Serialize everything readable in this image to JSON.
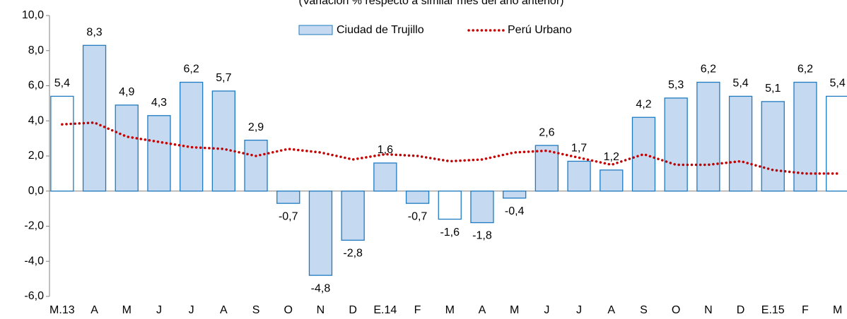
{
  "chart_data": {
    "type": "bar-line",
    "subtitle": "(Variación % respecto a similar mes del año anterior)",
    "categories": [
      "M.13",
      "A",
      "M",
      "J",
      "J",
      "A",
      "S",
      "O",
      "N",
      "D",
      "E.14",
      "F",
      "M",
      "A",
      "M",
      "J",
      "J",
      "A",
      "S",
      "O",
      "N",
      "D",
      "E.15",
      "F",
      "M"
    ],
    "series": [
      {
        "name": "Ciudad de Trujillo",
        "type": "bar",
        "color": "#c5d9f1",
        "edge_color": "#1f7bc1",
        "point_colors": [
          "#ffffff",
          "#c5d9f1",
          "#c5d9f1",
          "#c5d9f1",
          "#c5d9f1",
          "#c5d9f1",
          "#c5d9f1",
          "#c5d9f1",
          "#c5d9f1",
          "#c5d9f1",
          "#c5d9f1",
          "#c5d9f1",
          "#ffffff",
          "#c5d9f1",
          "#c5d9f1",
          "#c5d9f1",
          "#c5d9f1",
          "#c5d9f1",
          "#c5d9f1",
          "#c5d9f1",
          "#c5d9f1",
          "#c5d9f1",
          "#c5d9f1",
          "#c5d9f1",
          "#ffffff"
        ],
        "values": [
          5.4,
          8.3,
          4.9,
          4.3,
          6.2,
          5.7,
          2.9,
          -0.7,
          -4.8,
          -2.8,
          1.6,
          -0.7,
          -1.6,
          -1.8,
          -0.4,
          2.6,
          1.7,
          1.2,
          4.2,
          5.3,
          6.2,
          5.4,
          5.1,
          6.2,
          5.4
        ],
        "value_labels": [
          "5,4",
          "8,3",
          "4,9",
          "4,3",
          "6,2",
          "5,7",
          "2,9",
          "-0,7",
          "-4,8",
          "-2,8",
          "1,6",
          "-0,7",
          "-1,6",
          "-1,8",
          "-0,4",
          "2,6",
          "1,7",
          "1,2",
          "4,2",
          "5,3",
          "6,2",
          "5,4",
          "5,1",
          "6,2",
          "5,4"
        ]
      },
      {
        "name": "Perú Urbano",
        "type": "line",
        "color": "#c00000",
        "values": [
          3.8,
          3.9,
          3.1,
          2.8,
          2.5,
          2.4,
          2.0,
          2.4,
          2.2,
          1.8,
          2.1,
          2.0,
          1.7,
          1.8,
          2.2,
          2.3,
          1.9,
          1.5,
          2.1,
          1.5,
          1.5,
          1.7,
          1.2,
          1.0,
          1.0
        ]
      }
    ],
    "ylim": [
      -6,
      10
    ],
    "yticks": [
      {
        "value": -6,
        "label": "-6,0"
      },
      {
        "value": -4,
        "label": "-4,0"
      },
      {
        "value": -2,
        "label": "-2,0"
      },
      {
        "value": 0,
        "label": "0,0"
      },
      {
        "value": 2,
        "label": "2,0"
      },
      {
        "value": 4,
        "label": "4,0"
      },
      {
        "value": 6,
        "label": "6,0"
      },
      {
        "value": 8,
        "label": "8,0"
      },
      {
        "value": 10,
        "label": "10,0"
      }
    ],
    "grid": false,
    "legend": "top"
  }
}
